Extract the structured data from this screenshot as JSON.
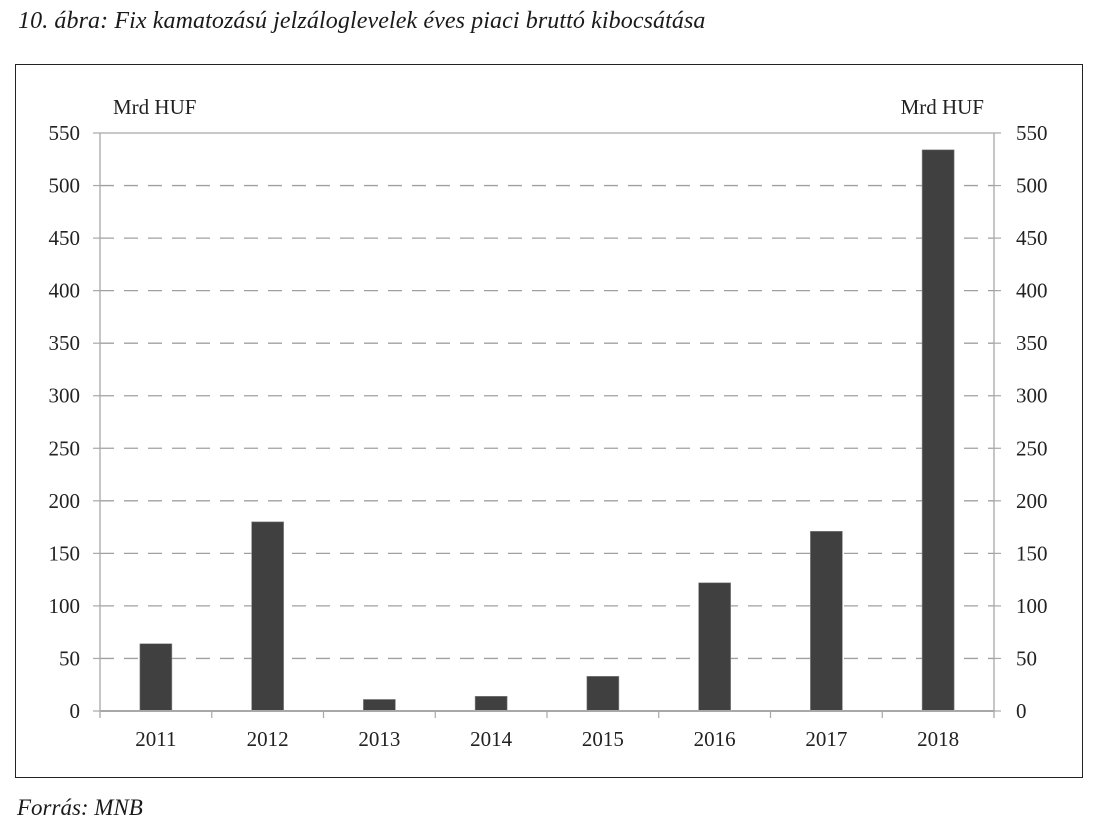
{
  "figure": {
    "title": "10. ábra: Fix kamatozású jelzáloglevelek éves piaci bruttó kibocsátása",
    "source": "Forrás: MNB"
  },
  "colors": {
    "bar": "#404041",
    "grid": "#a0a0a0",
    "axis": "#a8a8a8",
    "frame": "#222222"
  },
  "chart_data": {
    "type": "bar",
    "title": "10. ábra: Fix kamatozású jelzáloglevelek éves piaci bruttó kibocsátása",
    "xlabel": "",
    "ylabel": "Mrd HUF",
    "y2label": "Mrd HUF",
    "categories": [
      "2011",
      "2012",
      "2013",
      "2014",
      "2015",
      "2016",
      "2017",
      "2018"
    ],
    "values": [
      64,
      180,
      11,
      14,
      33,
      122,
      171,
      534
    ],
    "ylim": [
      0,
      550
    ],
    "yticks": [
      0,
      50,
      100,
      150,
      200,
      250,
      300,
      350,
      400,
      450,
      500,
      550
    ],
    "ytick_labels": [
      "0",
      "50",
      "100",
      "150",
      "200",
      "250",
      "300",
      "350",
      "400",
      "450",
      "500",
      "550"
    ],
    "grid": "horizontal dashed",
    "legend": null,
    "secondary_axis": "right, same scale",
    "source": "Forrás: MNB"
  }
}
